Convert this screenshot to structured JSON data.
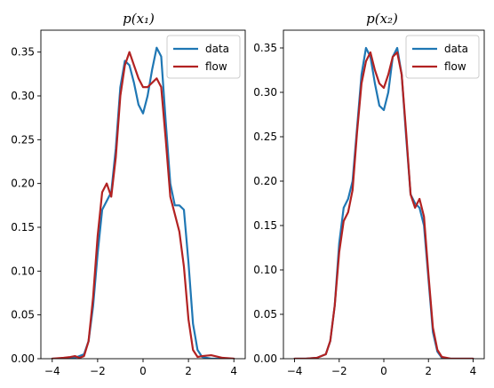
{
  "chart_data": [
    {
      "type": "line",
      "title": "p(x₁)",
      "xlim": [
        -4.5,
        4.5
      ],
      "ylim": [
        0,
        0.375
      ],
      "xticks": [
        -4,
        -2,
        0,
        2,
        4
      ],
      "xtick_labels": [
        "−4",
        "−2",
        "0",
        "2",
        "4"
      ],
      "yticks": [
        0,
        0.05,
        0.1,
        0.15,
        0.2,
        0.25,
        0.3,
        0.35
      ],
      "ytick_labels": [
        "0.00",
        "0.05",
        "0.10",
        "0.15",
        "0.20",
        "0.25",
        "0.30",
        "0.35"
      ],
      "legend_position": "top-right",
      "series": [
        {
          "name": "data",
          "color": "#1f77b4",
          "x": [
            -4.0,
            -3.5,
            -3.0,
            -2.6,
            -2.4,
            -2.2,
            -2.0,
            -1.8,
            -1.6,
            -1.4,
            -1.2,
            -1.0,
            -0.8,
            -0.6,
            -0.4,
            -0.2,
            0.0,
            0.2,
            0.4,
            0.6,
            0.8,
            1.0,
            1.2,
            1.4,
            1.6,
            1.8,
            2.0,
            2.2,
            2.4,
            2.6,
            3.0,
            3.5,
            4.0
          ],
          "y": [
            0.0,
            0.0,
            0.001,
            0.005,
            0.02,
            0.06,
            0.12,
            0.17,
            0.18,
            0.19,
            0.24,
            0.31,
            0.34,
            0.335,
            0.315,
            0.29,
            0.28,
            0.3,
            0.33,
            0.355,
            0.345,
            0.27,
            0.2,
            0.175,
            0.175,
            0.17,
            0.11,
            0.04,
            0.01,
            0.002,
            0.0,
            0.0,
            0.0
          ]
        },
        {
          "name": "flow",
          "color": "#b22222",
          "x": [
            -4.0,
            -3.5,
            -3.2,
            -3.0,
            -2.8,
            -2.6,
            -2.4,
            -2.2,
            -2.0,
            -1.8,
            -1.6,
            -1.4,
            -1.2,
            -1.0,
            -0.8,
            -0.6,
            -0.4,
            -0.2,
            0.0,
            0.2,
            0.4,
            0.6,
            0.8,
            1.0,
            1.2,
            1.4,
            1.6,
            1.8,
            2.0,
            2.2,
            2.4,
            2.6,
            3.0,
            3.5,
            4.0
          ],
          "y": [
            0.0,
            0.001,
            0.002,
            0.003,
            0.001,
            0.003,
            0.02,
            0.07,
            0.14,
            0.19,
            0.2,
            0.185,
            0.23,
            0.3,
            0.335,
            0.35,
            0.335,
            0.32,
            0.31,
            0.31,
            0.315,
            0.32,
            0.31,
            0.25,
            0.185,
            0.165,
            0.145,
            0.105,
            0.045,
            0.01,
            0.002,
            0.003,
            0.004,
            0.001,
            0.0
          ]
        }
      ]
    },
    {
      "type": "line",
      "title": "p(x₂)",
      "xlim": [
        -4.5,
        4.5
      ],
      "ylim": [
        0,
        0.37
      ],
      "xticks": [
        -4,
        -2,
        0,
        2,
        4
      ],
      "xtick_labels": [
        "−4",
        "−2",
        "0",
        "2",
        "4"
      ],
      "yticks": [
        0,
        0.05,
        0.1,
        0.15,
        0.2,
        0.25,
        0.3,
        0.35
      ],
      "ytick_labels": [
        "0.00",
        "0.05",
        "0.10",
        "0.15",
        "0.20",
        "0.25",
        "0.30",
        "0.35"
      ],
      "legend_position": "top-right",
      "series": [
        {
          "name": "data",
          "color": "#1f77b4",
          "x": [
            -4.0,
            -3.5,
            -3.0,
            -2.6,
            -2.4,
            -2.2,
            -2.0,
            -1.8,
            -1.6,
            -1.4,
            -1.2,
            -1.0,
            -0.8,
            -0.6,
            -0.4,
            -0.2,
            0.0,
            0.2,
            0.4,
            0.6,
            0.8,
            1.0,
            1.2,
            1.4,
            1.6,
            1.8,
            2.0,
            2.2,
            2.4,
            2.6,
            3.0,
            3.5,
            4.0
          ],
          "y": [
            0.0,
            0.0,
            0.001,
            0.005,
            0.02,
            0.06,
            0.13,
            0.17,
            0.18,
            0.2,
            0.26,
            0.32,
            0.35,
            0.34,
            0.31,
            0.285,
            0.28,
            0.3,
            0.34,
            0.35,
            0.32,
            0.25,
            0.185,
            0.175,
            0.17,
            0.15,
            0.09,
            0.03,
            0.008,
            0.001,
            0.0,
            0.0,
            0.0
          ]
        },
        {
          "name": "flow",
          "color": "#b22222",
          "x": [
            -4.0,
            -3.5,
            -3.0,
            -2.6,
            -2.4,
            -2.2,
            -2.0,
            -1.8,
            -1.6,
            -1.4,
            -1.2,
            -1.0,
            -0.8,
            -0.6,
            -0.4,
            -0.2,
            0.0,
            0.2,
            0.4,
            0.6,
            0.8,
            1.0,
            1.2,
            1.4,
            1.6,
            1.8,
            2.0,
            2.2,
            2.4,
            2.6,
            3.0,
            3.5,
            4.0
          ],
          "y": [
            0.0,
            0.0,
            0.001,
            0.005,
            0.02,
            0.06,
            0.12,
            0.155,
            0.165,
            0.19,
            0.255,
            0.31,
            0.335,
            0.345,
            0.325,
            0.31,
            0.305,
            0.32,
            0.34,
            0.345,
            0.32,
            0.255,
            0.185,
            0.17,
            0.18,
            0.16,
            0.095,
            0.035,
            0.01,
            0.002,
            0.0,
            0.0,
            0.0
          ]
        }
      ]
    }
  ]
}
